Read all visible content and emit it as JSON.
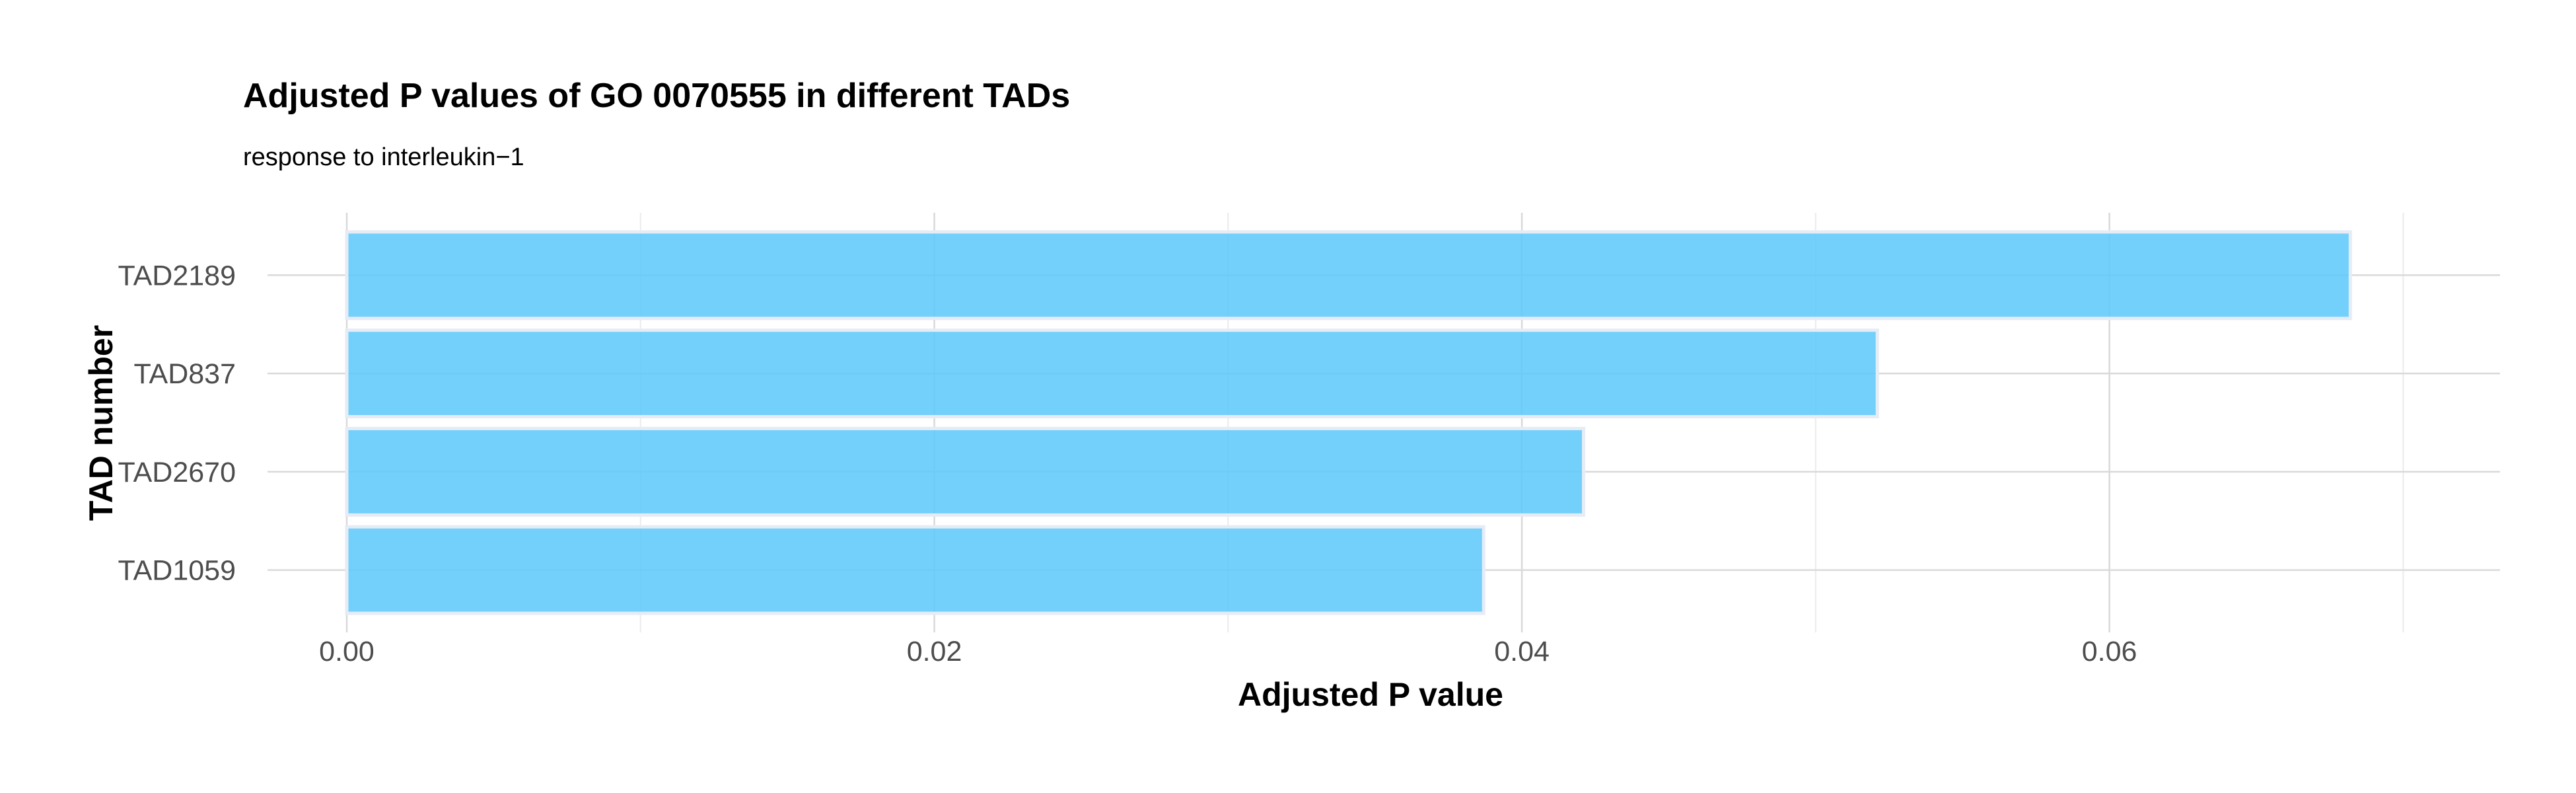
{
  "chart_data": {
    "type": "bar",
    "orientation": "horizontal",
    "title": "Adjusted P values of GO 0070555 in different TADs",
    "subtitle": "response to interleukin−1",
    "xlabel": "Adjusted P value",
    "ylabel": "TAD number",
    "categories": [
      "TAD2189",
      "TAD837",
      "TAD2670",
      "TAD1059"
    ],
    "values": [
      0.0682,
      0.0521,
      0.0421,
      0.0387
    ],
    "xlim": [
      0.0,
      0.0717
    ],
    "xticks": [
      0.0,
      0.02,
      0.04,
      0.06
    ],
    "xtick_labels": [
      "0.00",
      "0.02",
      "0.04",
      "0.06"
    ],
    "bar_color": "#5BC8FA",
    "bar_edge_color": "#E6ECF5",
    "grid": true,
    "legend": "none"
  }
}
